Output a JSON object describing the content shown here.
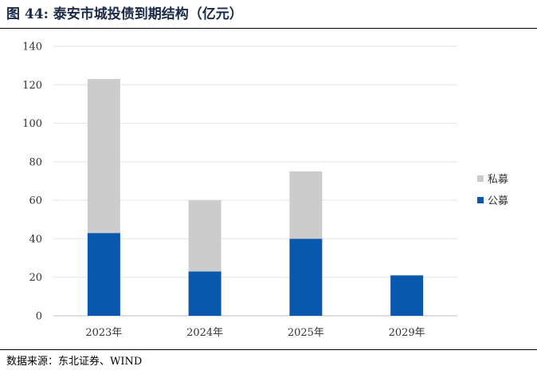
{
  "header": {
    "title": "图 44: 泰安市城投债到期结构（亿元）"
  },
  "footer": {
    "source": "数据来源：东北证券、WIND"
  },
  "chart_data": {
    "type": "bar",
    "stacked": true,
    "categories": [
      "2023年",
      "2024年",
      "2025年",
      "2029年"
    ],
    "series": [
      {
        "name": "公募",
        "values": [
          43,
          23,
          40,
          21
        ],
        "color": "#0a58ad"
      },
      {
        "name": "私募",
        "values": [
          80,
          37,
          35,
          0
        ],
        "color": "#cccccc"
      }
    ],
    "title": "泰安市城投债到期结构（亿元）",
    "xlabel": "",
    "ylabel": "",
    "ylim": [
      0,
      140
    ],
    "yticks": [
      0,
      20,
      40,
      60,
      80,
      100,
      120,
      140
    ],
    "grid": true,
    "legend": "right"
  }
}
